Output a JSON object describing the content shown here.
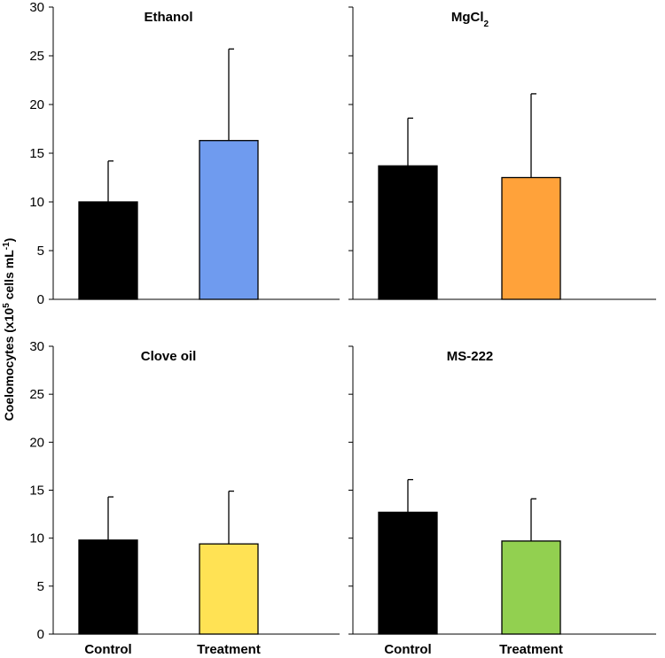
{
  "figure": {
    "y_axis_title_main": "Coelomocytes (x10",
    "y_axis_title_sup1": "5",
    "y_axis_title_mid": " cells mL",
    "y_axis_title_sup2": "-1",
    "y_axis_title_end": ")"
  },
  "chart_data": [
    {
      "type": "bar",
      "title": "Ethanol",
      "title_sub": "",
      "categories": [
        "Control",
        "Treatment"
      ],
      "values": [
        10.0,
        16.3
      ],
      "errors": [
        4.2,
        9.4
      ],
      "colors": [
        "#000000",
        "#6f9bef"
      ],
      "ylim": [
        0,
        30
      ],
      "yticks": [
        0,
        5,
        10,
        15,
        20,
        25,
        30
      ]
    },
    {
      "type": "bar",
      "title": "MgCl",
      "title_sub": "2",
      "categories": [
        "Control",
        "Treatment"
      ],
      "values": [
        13.7,
        12.5
      ],
      "errors": [
        4.9,
        8.6
      ],
      "colors": [
        "#000000",
        "#ffa23a"
      ],
      "ylim": [
        0,
        30
      ],
      "yticks": [
        0,
        5,
        10,
        15,
        20,
        25,
        30
      ]
    },
    {
      "type": "bar",
      "title": "Clove oil",
      "title_sub": "",
      "categories": [
        "Control",
        "Treatment"
      ],
      "values": [
        9.8,
        9.4
      ],
      "errors": [
        4.5,
        5.5
      ],
      "colors": [
        "#000000",
        "#ffe254"
      ],
      "ylim": [
        0,
        30
      ],
      "yticks": [
        0,
        5,
        10,
        15,
        20,
        25,
        30
      ]
    },
    {
      "type": "bar",
      "title": "MS-222",
      "title_sub": "",
      "categories": [
        "Control",
        "Treatment"
      ],
      "values": [
        12.7,
        9.7
      ],
      "errors": [
        3.4,
        4.4
      ],
      "colors": [
        "#000000",
        "#92d050"
      ],
      "ylim": [
        0,
        30
      ],
      "yticks": [
        0,
        5,
        10,
        15,
        20,
        25,
        30
      ]
    }
  ]
}
